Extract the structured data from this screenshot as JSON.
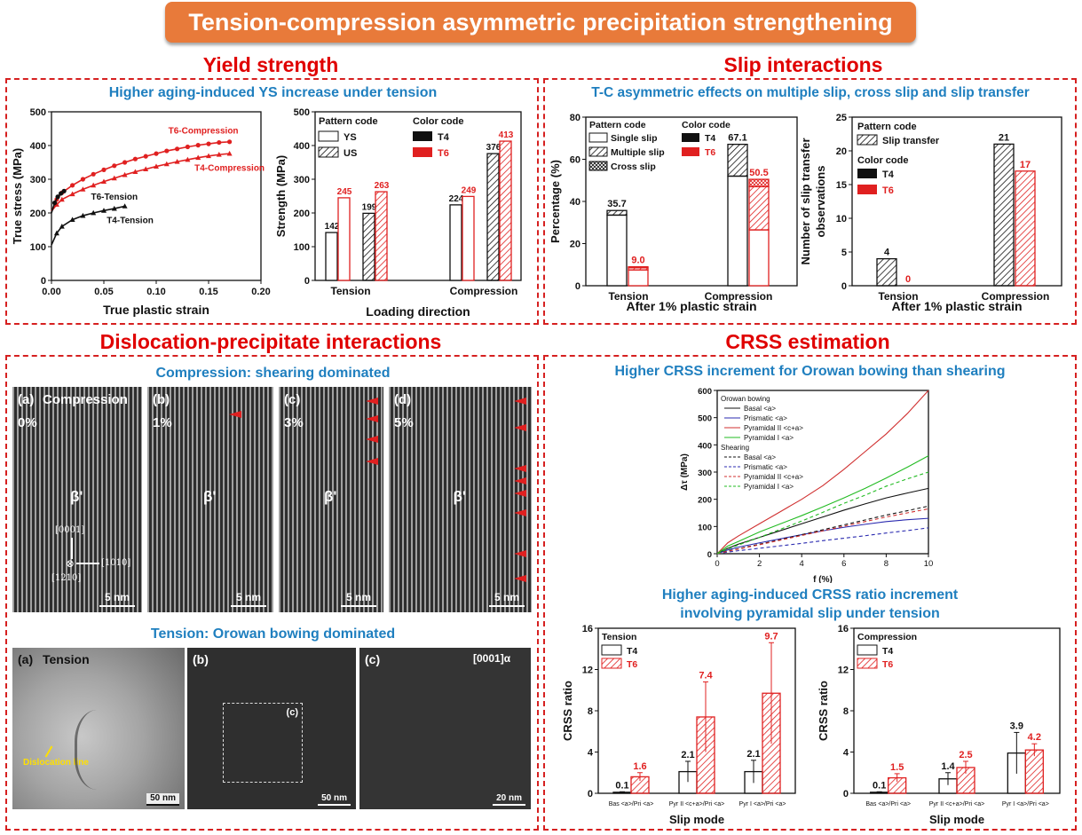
{
  "header": {
    "title": "Tension-compression asymmetric precipitation strengthening"
  },
  "sections": {
    "yield": "Yield strength",
    "slip": "Slip interactions",
    "dislocation": "Dislocation-precipitate interactions",
    "crss": "CRSS estimation"
  },
  "yield_panel": {
    "subtitle": "Higher aging-induced YS increase under tension"
  },
  "slip_panel": {
    "subtitle": "T-C asymmetric effects on multiple slip, cross slip and slip transfer"
  },
  "disloc_panel": {
    "compression_subtitle": "Compression: shearing dominated",
    "tension_subtitle": "Tension: Orowan bowing dominated",
    "comp_images": [
      {
        "tag": "(a)",
        "extra": "Compression",
        "strain": "0%",
        "phase": "β'",
        "scale": "5 nm"
      },
      {
        "tag": "(b)",
        "extra": "",
        "strain": "1%",
        "phase": "β'",
        "scale": "5 nm"
      },
      {
        "tag": "(c)",
        "extra": "",
        "strain": "3%",
        "phase": "β'",
        "scale": "5 nm"
      },
      {
        "tag": "(d)",
        "extra": "",
        "strain": "5%",
        "phase": "β'",
        "scale": "5 nm"
      }
    ],
    "axes": {
      "up": "[0001]",
      "right": "[1010]",
      "down": "[1210]"
    },
    "tens_images": [
      {
        "tag": "(a)",
        "extra": "Tension",
        "scale": "50 nm",
        "note": "Dislocation line"
      },
      {
        "tag": "(b)",
        "extra": "",
        "scale": "50 nm",
        "note": "(c)"
      },
      {
        "tag": "(c)",
        "extra": "[0001]α",
        "scale": "20 nm",
        "note": ""
      }
    ]
  },
  "crss_panel": {
    "subtitle1": "Higher CRSS increment for Orowan bowing than shearing",
    "subtitle2a": "Higher aging-induced CRSS ratio increment",
    "subtitle2b": "involving pyramidal slip under tension"
  },
  "chart_data": [
    {
      "id": "true-stress",
      "type": "line",
      "xlabel": "True plastic strain",
      "ylabel": "True stress (MPa)",
      "xlim": [
        0,
        0.2
      ],
      "ylim": [
        0,
        500
      ],
      "xticks": [
        "0.00",
        "0.05",
        "0.10",
        "0.15",
        "0.20"
      ],
      "yticks": [
        "0",
        "100",
        "200",
        "300",
        "400",
        "500"
      ],
      "series": [
        {
          "name": "T6-Compression",
          "color": "#e02020",
          "marker": "circle",
          "x": [
            0,
            0.005,
            0.01,
            0.02,
            0.03,
            0.04,
            0.05,
            0.06,
            0.07,
            0.08,
            0.09,
            0.1,
            0.11,
            0.12,
            0.13,
            0.14,
            0.15,
            0.16,
            0.17
          ],
          "y": [
            205,
            240,
            260,
            282,
            300,
            315,
            328,
            340,
            350,
            360,
            368,
            376,
            384,
            390,
            396,
            401,
            405,
            409,
            411
          ]
        },
        {
          "name": "T4-Compression",
          "color": "#e02020",
          "marker": "triangle",
          "x": [
            0,
            0.005,
            0.01,
            0.02,
            0.03,
            0.04,
            0.05,
            0.06,
            0.07,
            0.08,
            0.09,
            0.1,
            0.11,
            0.12,
            0.13,
            0.14,
            0.15,
            0.16,
            0.17
          ],
          "y": [
            205,
            225,
            240,
            256,
            270,
            282,
            293,
            303,
            313,
            322,
            330,
            338,
            345,
            352,
            358,
            364,
            369,
            373,
            376
          ]
        },
        {
          "name": "T6-Tension",
          "color": "#111111",
          "marker": "circle",
          "x": [
            0,
            0.003,
            0.006,
            0.009,
            0.012
          ],
          "y": [
            200,
            230,
            248,
            258,
            265
          ]
        },
        {
          "name": "T4-Tension",
          "color": "#111111",
          "marker": "triangle",
          "x": [
            0,
            0.005,
            0.01,
            0.02,
            0.03,
            0.04,
            0.05,
            0.06,
            0.07
          ],
          "y": [
            105,
            140,
            160,
            180,
            192,
            200,
            207,
            213,
            220
          ]
        }
      ]
    },
    {
      "id": "strength",
      "type": "bar",
      "xlabel": "Loading direction",
      "ylabel": "Strength (MPa)",
      "ylim": [
        0,
        500
      ],
      "yticks": [
        "0",
        "100",
        "200",
        "300",
        "400",
        "500"
      ],
      "categories": [
        "Tension",
        "Compression"
      ],
      "legend": {
        "pattern_title": "Pattern code",
        "pattern_items": [
          "YS",
          "US"
        ],
        "color_title": "Color code",
        "color_items": [
          "T4",
          "T6"
        ]
      },
      "bars": [
        {
          "group": "Tension",
          "value": 142,
          "label": "142",
          "color": "#111111",
          "hatch": false
        },
        {
          "group": "Tension",
          "value": 245,
          "label": "245",
          "color": "#e02020",
          "hatch": false
        },
        {
          "group": "Tension",
          "value": 199,
          "label": "199",
          "color": "#111111",
          "hatch": true
        },
        {
          "group": "Tension",
          "value": 263,
          "label": "263",
          "color": "#e02020",
          "hatch": true
        },
        {
          "group": "Compression",
          "value": 224,
          "label": "224",
          "color": "#111111",
          "hatch": false
        },
        {
          "group": "Compression",
          "value": 249,
          "label": "249",
          "color": "#e02020",
          "hatch": false
        },
        {
          "group": "Compression",
          "value": 376,
          "label": "376",
          "color": "#111111",
          "hatch": true
        },
        {
          "group": "Compression",
          "value": 413,
          "label": "413",
          "color": "#e02020",
          "hatch": true
        }
      ]
    },
    {
      "id": "slip-percentage",
      "type": "bar",
      "xlabel": "After 1% plastic strain",
      "ylabel": "Percentage (%)",
      "ylim": [
        0,
        80
      ],
      "yticks": [
        "0",
        "20",
        "40",
        "60",
        "80"
      ],
      "categories": [
        "Tension",
        "Compression"
      ],
      "legend": {
        "pattern_title": "Pattern code",
        "pattern_items": [
          "Single slip",
          "Multiple slip",
          "Cross slip"
        ],
        "color_title": "Color code",
        "color_items": [
          "T4",
          "T6"
        ]
      },
      "stacks": [
        {
          "group": "Tension",
          "color": "#111111",
          "label": "35.7",
          "parts": [
            {
              "kind": "single",
              "value": 33.5
            },
            {
              "kind": "multiple",
              "value": 2.2
            }
          ]
        },
        {
          "group": "Tension",
          "color": "#e02020",
          "label": "9.0",
          "parts": [
            {
              "kind": "single",
              "value": 7.5
            },
            {
              "kind": "multiple",
              "value": 1.0
            },
            {
              "kind": "cross",
              "value": 0.5
            }
          ]
        },
        {
          "group": "Compression",
          "color": "#111111",
          "label": "67.1",
          "parts": [
            {
              "kind": "single",
              "value": 52
            },
            {
              "kind": "multiple",
              "value": 15.1
            }
          ]
        },
        {
          "group": "Compression",
          "color": "#e02020",
          "label": "50.5",
          "parts": [
            {
              "kind": "single",
              "value": 26.5
            },
            {
              "kind": "multiple",
              "value": 20.5
            },
            {
              "kind": "cross",
              "value": 3.5
            }
          ]
        }
      ]
    },
    {
      "id": "slip-transfer",
      "type": "bar",
      "xlabel": "After 1% plastic strain",
      "ylabel": "Number of slip transfer observations",
      "ylabel_lines": [
        "Number of slip transfer",
        "observations"
      ],
      "ylim": [
        0,
        25
      ],
      "yticks": [
        "0",
        "5",
        "10",
        "15",
        "20",
        "25"
      ],
      "categories": [
        "Tension",
        "Compression"
      ],
      "legend": {
        "pattern_title": "Pattern code",
        "pattern_items": [
          "Slip transfer"
        ],
        "color_title": "Color code",
        "color_items": [
          "T4",
          "T6"
        ]
      },
      "bars": [
        {
          "group": "Tension",
          "value": 4,
          "label": "4",
          "color": "#111111"
        },
        {
          "group": "Tension",
          "value": 0,
          "label": "0",
          "color": "#e02020"
        },
        {
          "group": "Compression",
          "value": 21,
          "label": "21",
          "color": "#111111"
        },
        {
          "group": "Compression",
          "value": 17,
          "label": "17",
          "color": "#e02020"
        }
      ]
    },
    {
      "id": "delta-tau",
      "type": "line",
      "xlabel": "f (%)",
      "ylabel": "Δτ (MPa)",
      "xlim": [
        0,
        10
      ],
      "ylim": [
        0,
        600
      ],
      "xticks": [
        "0",
        "2",
        "4",
        "6",
        "8",
        "10"
      ],
      "yticks": [
        "0",
        "100",
        "200",
        "300",
        "400",
        "500",
        "600"
      ],
      "legend_groups": [
        "Orowan bowing",
        "Shearing"
      ],
      "x": [
        0,
        0.5,
        1,
        2,
        3,
        4,
        5,
        6,
        7,
        8,
        9,
        10
      ],
      "series": [
        {
          "name": "Basal <a>",
          "group": "Orowan bowing",
          "color": "#111111",
          "dash": false,
          "y": [
            0,
            20,
            35,
            60,
            85,
            110,
            135,
            160,
            183,
            205,
            223,
            240
          ]
        },
        {
          "name": "Prismatic <a>",
          "group": "Orowan bowing",
          "color": "#2b2bb0",
          "dash": false,
          "y": [
            0,
            14,
            24,
            40,
            55,
            70,
            84,
            97,
            108,
            118,
            125,
            130
          ]
        },
        {
          "name": "Pyramidal II <c+a>",
          "group": "Orowan bowing",
          "color": "#d03030",
          "dash": false,
          "y": [
            0,
            40,
            65,
            110,
            155,
            200,
            250,
            310,
            375,
            440,
            515,
            600
          ]
        },
        {
          "name": "Pyramidal I <a>",
          "group": "Orowan bowing",
          "color": "#22bb22",
          "dash": false,
          "y": [
            0,
            28,
            45,
            80,
            110,
            140,
            172,
            205,
            240,
            278,
            318,
            360
          ]
        },
        {
          "name": "Basal <a>",
          "group": "Shearing",
          "color": "#111111",
          "dash": true,
          "y": [
            0,
            10,
            18,
            35,
            52,
            70,
            88,
            106,
            124,
            142,
            158,
            175
          ]
        },
        {
          "name": "Prismatic <a>",
          "group": "Shearing",
          "color": "#2b2bb0",
          "dash": true,
          "y": [
            0,
            6,
            11,
            20,
            29,
            38,
            48,
            57,
            66,
            76,
            85,
            95
          ]
        },
        {
          "name": "Pyramidal II <c+a>",
          "group": "Shearing",
          "color": "#d03030",
          "dash": true,
          "y": [
            0,
            9,
            17,
            33,
            50,
            67,
            84,
            101,
            118,
            135,
            150,
            165
          ]
        },
        {
          "name": "Pyramidal I <a>",
          "group": "Shearing",
          "color": "#22bb22",
          "dash": true,
          "y": [
            0,
            18,
            32,
            60,
            90,
            120,
            152,
            185,
            215,
            248,
            275,
            300
          ]
        }
      ]
    },
    {
      "id": "crss-tension",
      "type": "bar",
      "legend_title": "Tension",
      "legend_items": [
        "T4",
        "T6"
      ],
      "xlabel": "Slip mode",
      "ylabel": "CRSS ratio",
      "ylim": [
        0,
        16
      ],
      "yticks": [
        "0",
        "4",
        "8",
        "12",
        "16"
      ],
      "categories": [
        "Bas <a>/Pri <a>",
        "Pyr II <c+a>/Pri <a>",
        "Pyr I <a>/Pri <a>"
      ],
      "series": [
        {
          "name": "T4",
          "color": "#111111",
          "values": [
            0.1,
            2.1,
            2.1
          ],
          "labels": [
            "0.1",
            "2.1",
            "2.1"
          ],
          "err": [
            0.05,
            1.0,
            1.1
          ]
        },
        {
          "name": "T6",
          "color": "#e02020",
          "values": [
            1.6,
            7.4,
            9.7
          ],
          "labels": [
            "1.6",
            "7.4",
            "9.7"
          ],
          "err": [
            0.4,
            3.4,
            4.9
          ]
        }
      ]
    },
    {
      "id": "crss-compression",
      "type": "bar",
      "legend_title": "Compression",
      "legend_items": [
        "T4",
        "T6"
      ],
      "xlabel": "Slip mode",
      "ylabel": "CRSS ratio",
      "ylim": [
        0,
        16
      ],
      "yticks": [
        "0",
        "4",
        "8",
        "12",
        "16"
      ],
      "categories": [
        "Bas <a>/Pri <a>",
        "Pyr II <c+a>/Pri <a>",
        "Pyr I <a>/Pri <a>"
      ],
      "series": [
        {
          "name": "T4",
          "color": "#111111",
          "values": [
            0.1,
            1.4,
            3.9
          ],
          "labels": [
            "0.1",
            "1.4",
            "3.9"
          ],
          "err": [
            0.05,
            0.6,
            2.0
          ]
        },
        {
          "name": "T6",
          "color": "#e02020",
          "values": [
            1.5,
            2.5,
            4.2
          ],
          "labels": [
            "1.5",
            "2.5",
            "4.2"
          ],
          "err": [
            0.4,
            0.6,
            0.6
          ]
        }
      ]
    }
  ]
}
